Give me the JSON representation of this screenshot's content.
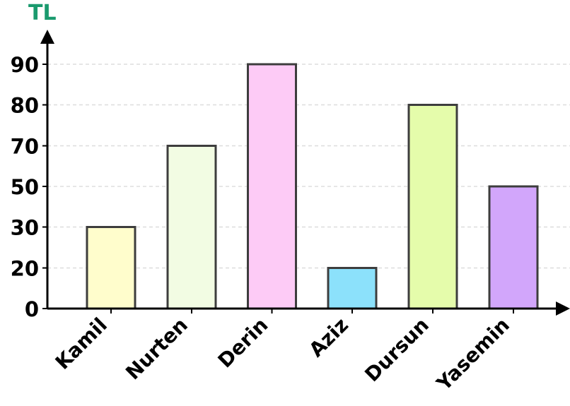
{
  "chart_data": {
    "type": "bar",
    "title": "",
    "xlabel": "",
    "ylabel": "TL",
    "categories": [
      "Kamil",
      "Nurten",
      "Derin",
      "Aziz",
      "Dursun",
      "Yasemin"
    ],
    "values": [
      30,
      70,
      90,
      20,
      80,
      50
    ],
    "bar_colors": [
      "#FFFDCC",
      "#F2FCE3",
      "#FDCBF6",
      "#8CE1FB",
      "#E5FCAB",
      "#D2A6FB"
    ],
    "yticks": [
      0,
      20,
      30,
      50,
      70,
      80,
      90
    ],
    "grid": true,
    "legend": "none"
  },
  "colors": {
    "ylabel": "#1A9A6E",
    "bar_edge": "#3d3d3d",
    "axis": "#000000",
    "grid": "#dddddd"
  }
}
